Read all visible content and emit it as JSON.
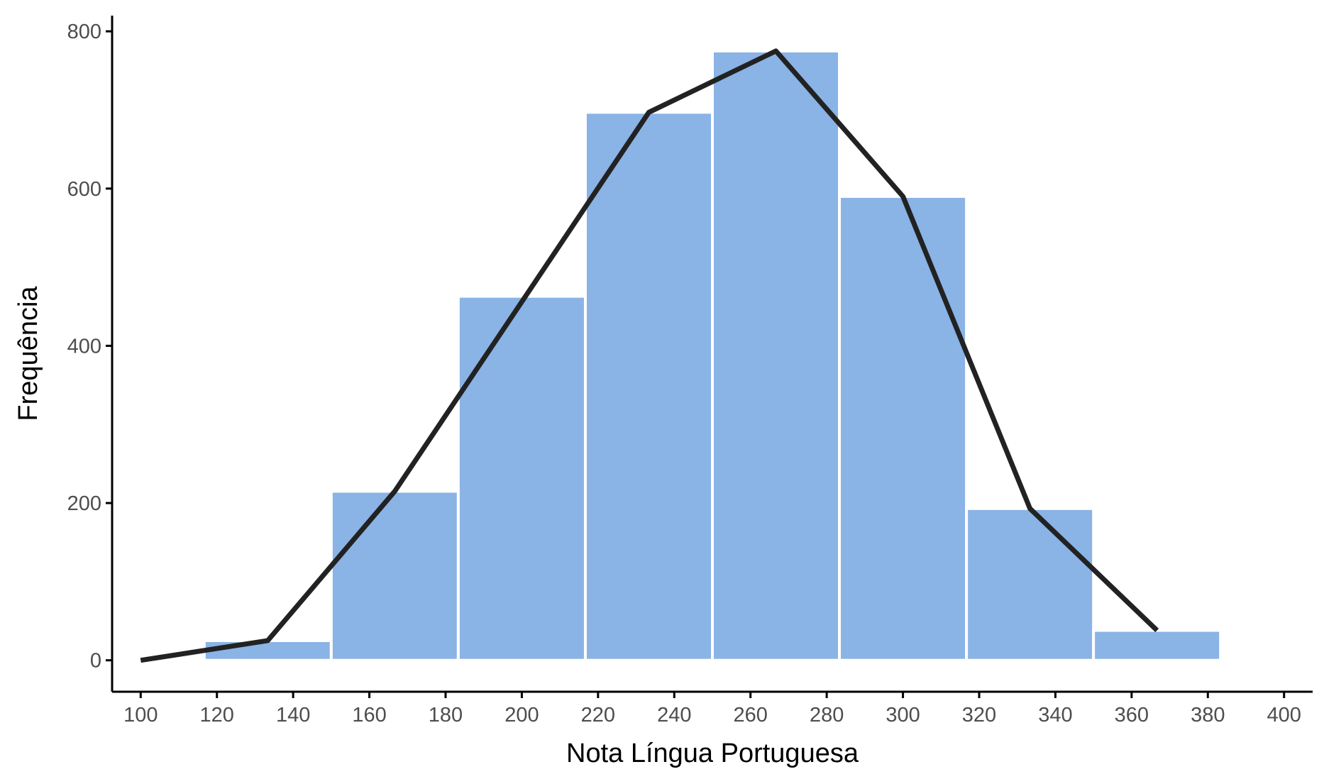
{
  "chart_data": {
    "type": "bar",
    "overlay": "line",
    "title": "",
    "xlabel": "Nota Língua Portuguesa",
    "ylabel": "Frequência",
    "xlim": [
      92.5,
      407.5
    ],
    "ylim": [
      -40,
      820
    ],
    "x_ticks": [
      100,
      120,
      140,
      160,
      180,
      200,
      220,
      240,
      260,
      280,
      300,
      320,
      340,
      360,
      380,
      400
    ],
    "y_ticks": [
      0,
      200,
      400,
      600,
      800
    ],
    "bins": [
      {
        "x0": 116.67,
        "x1": 150.0,
        "count": 25
      },
      {
        "x0": 150.0,
        "x1": 183.33,
        "count": 215
      },
      {
        "x0": 183.33,
        "x1": 216.67,
        "count": 463
      },
      {
        "x0": 216.67,
        "x1": 250.0,
        "count": 697
      },
      {
        "x0": 250.0,
        "x1": 283.33,
        "count": 775
      },
      {
        "x0": 283.33,
        "x1": 316.67,
        "count": 590
      },
      {
        "x0": 316.67,
        "x1": 350.0,
        "count": 193
      },
      {
        "x0": 350.0,
        "x1": 383.33,
        "count": 38
      }
    ],
    "frequency_polygon": {
      "x": [
        100,
        133.33,
        166.67,
        233.33,
        266.67,
        300,
        333.33,
        366.67
      ],
      "y": [
        0,
        25,
        215,
        697,
        775,
        590,
        193,
        38
      ]
    },
    "grid": false,
    "legend": "none",
    "colors": {
      "bar_fill": "#8ab3e6",
      "bar_edge": "#ffffff",
      "line": "#222222",
      "axis": "#000000",
      "tick_text": "#4d4d4d"
    }
  }
}
